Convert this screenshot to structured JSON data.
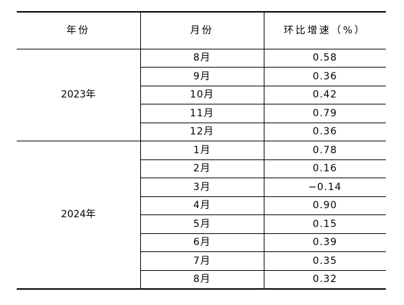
{
  "table": {
    "headers": [
      "年份",
      "月份",
      "环比增速（%）"
    ],
    "groups": [
      {
        "year": "2023年",
        "rows": [
          {
            "month": "8月",
            "rate": "0.58"
          },
          {
            "month": "9月",
            "rate": "0.36"
          },
          {
            "month": "10月",
            "rate": "0.42"
          },
          {
            "month": "11月",
            "rate": "0.79"
          },
          {
            "month": "12月",
            "rate": "0.36"
          }
        ]
      },
      {
        "year": "2024年",
        "rows": [
          {
            "month": "1月",
            "rate": "0.78"
          },
          {
            "month": "2月",
            "rate": "0.16"
          },
          {
            "month": "3月",
            "rate": "−0.14"
          },
          {
            "month": "4月",
            "rate": "0.90"
          },
          {
            "month": "5月",
            "rate": "0.15"
          },
          {
            "month": "6月",
            "rate": "0.39"
          },
          {
            "month": "7月",
            "rate": "0.35"
          },
          {
            "month": "8月",
            "rate": "0.32"
          }
        ]
      }
    ]
  }
}
